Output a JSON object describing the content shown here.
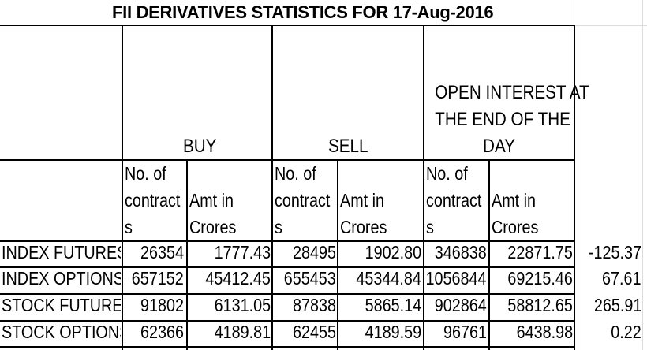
{
  "title": "FII DERIVATIVES STATISTICS FOR 17-Aug-2016",
  "groups": {
    "buy": "BUY",
    "sell": "SELL",
    "oi_line1": "OPEN INTEREST AT",
    "oi_line2": "THE END OF THE",
    "oi_line3": "DAY"
  },
  "subheaders": {
    "contracts_l1": "No. of",
    "contracts_l2": "contract",
    "contracts_l3": "s",
    "amt_l1": "Amt in",
    "amt_l2": "Crores"
  },
  "rows": [
    {
      "label": "INDEX FUTURES",
      "buy_contracts": "26354",
      "buy_amt": "1777.43",
      "sell_contracts": "28495",
      "sell_amt": "1902.80",
      "oi_contracts": "346838",
      "oi_amt": "22871.75",
      "net": "-125.37"
    },
    {
      "label": "INDEX OPTIONS",
      "buy_contracts": "657152",
      "buy_amt": "45412.45",
      "sell_contracts": "655453",
      "sell_amt": "45344.84",
      "oi_contracts": "1056844",
      "oi_amt": "69215.46",
      "net": "67.61"
    },
    {
      "label": "STOCK FUTURES",
      "buy_contracts": "91802",
      "buy_amt": "6131.05",
      "sell_contracts": "87838",
      "sell_amt": "5865.14",
      "oi_contracts": "902864",
      "oi_amt": "58812.65",
      "net": "265.91"
    },
    {
      "label": "STOCK OPTIONS",
      "buy_contracts": "62366",
      "buy_amt": "4189.81",
      "sell_contracts": "62455",
      "sell_amt": "4189.59",
      "oi_contracts": "96761",
      "oi_amt": "6438.98",
      "net": "0.22"
    }
  ]
}
